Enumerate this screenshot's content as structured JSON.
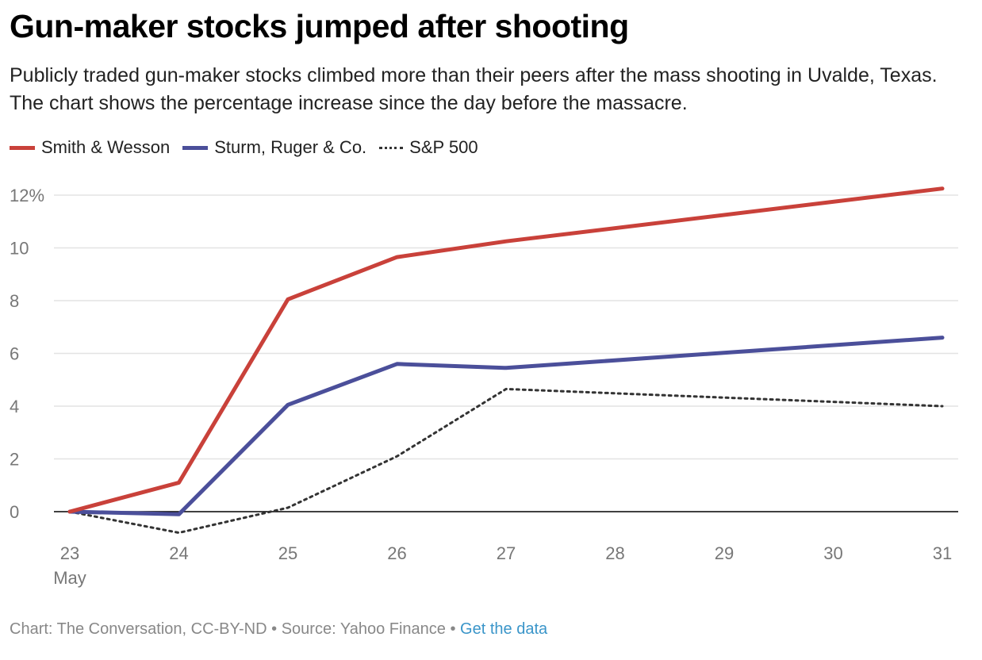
{
  "title": "Gun-maker stocks jumped after shooting",
  "subtitle": "Publicly traded gun-maker stocks climbed more than their peers after the mass shooting in Uvalde, Texas. The chart shows the percentage increase since the day before the massacre.",
  "footer": {
    "credit": "Chart: The Conversation, CC-BY-ND",
    "separator": "•",
    "source": "Source: Yahoo Finance",
    "link": "Get the data"
  },
  "colors": {
    "smith": "#c9413a",
    "ruger": "#4b4f9a",
    "sp500": "#333333",
    "grid": "#e3e3e3",
    "zero": "#000000"
  },
  "chart_data": {
    "type": "line",
    "x": [
      23,
      24,
      25,
      26,
      27,
      28,
      29,
      30,
      31
    ],
    "x_tick_labels": [
      "23",
      "24",
      "25",
      "26",
      "27",
      "28",
      "29",
      "30",
      "31"
    ],
    "x_sublabel": "May",
    "y_ticks": [
      0,
      2,
      4,
      6,
      8,
      10,
      12
    ],
    "y_tick_labels": [
      "0",
      "2",
      "4",
      "6",
      "8",
      "10",
      "12%"
    ],
    "ylim": [
      -1.3,
      12.5
    ],
    "legend_position": "top-left",
    "grid": true,
    "series": [
      {
        "name": "Smith & Wesson",
        "style": "solid",
        "x": [
          23,
          24,
          25,
          26,
          27,
          31
        ],
        "values": [
          0,
          1.1,
          8.05,
          9.65,
          10.25,
          12.25
        ]
      },
      {
        "name": "Sturm, Ruger & Co.",
        "style": "solid",
        "x": [
          23,
          24,
          25,
          26,
          27,
          31
        ],
        "values": [
          0,
          -0.1,
          4.05,
          5.6,
          5.45,
          6.6
        ]
      },
      {
        "name": "S&P 500",
        "style": "dotted",
        "x": [
          23,
          24,
          25,
          26,
          27,
          31
        ],
        "values": [
          0,
          -0.8,
          0.15,
          2.1,
          4.65,
          4.0
        ]
      }
    ]
  }
}
